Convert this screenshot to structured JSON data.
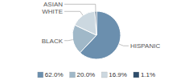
{
  "chart_data": {
    "type": "pie",
    "categories": [
      "HISPANIC",
      "BLACK",
      "WHITE",
      "ASIAN"
    ],
    "values": [
      62.0,
      20.0,
      16.9,
      1.1
    ],
    "value_labels": [
      "62.0%",
      "20.0%",
      "16.9%",
      "1.1%"
    ],
    "colors": [
      "#6b8fae",
      "#a0b8c8",
      "#ccd8e0",
      "#2e4d6b"
    ],
    "legend": "bottom"
  }
}
